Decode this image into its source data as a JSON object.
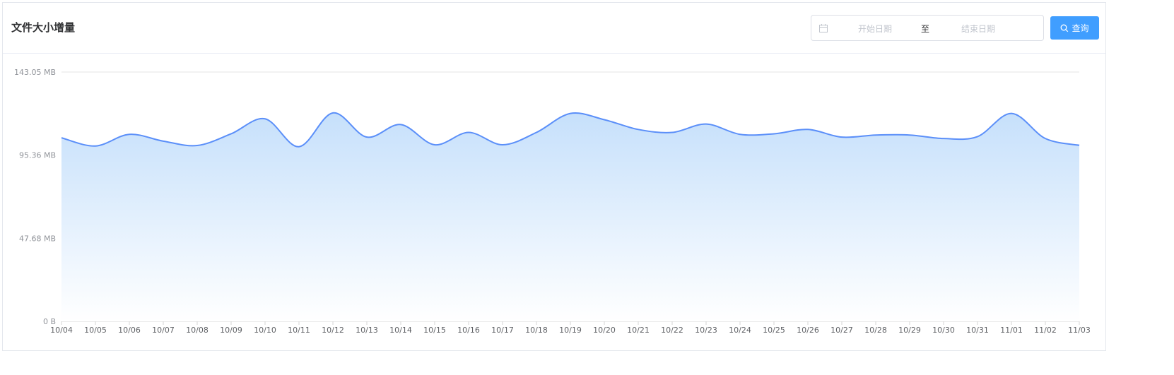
{
  "header": {
    "title": "文件大小增量",
    "start_placeholder": "开始日期",
    "separator": "至",
    "end_placeholder": "结束日期",
    "search_label": "查询"
  },
  "colors": {
    "accent": "#409eff",
    "line": "#5b8ff9",
    "area_top": "#c6e0fb",
    "area_bottom": "#ffffff"
  },
  "chart_data": {
    "type": "area",
    "title": "",
    "xlabel": "",
    "ylabel": "",
    "ylim": [
      0,
      143.05
    ],
    "y_ticks": [
      {
        "value": 0,
        "label": "0 B"
      },
      {
        "value": 47.68,
        "label": "47.68 MB"
      },
      {
        "value": 95.36,
        "label": "95.36 MB"
      },
      {
        "value": 143.05,
        "label": "143.05 MB"
      }
    ],
    "categories": [
      "10/04",
      "10/05",
      "10/06",
      "10/07",
      "10/08",
      "10/09",
      "10/10",
      "10/11",
      "10/12",
      "10/13",
      "10/14",
      "10/15",
      "10/16",
      "10/17",
      "10/18",
      "10/19",
      "10/20",
      "10/21",
      "10/22",
      "10/23",
      "10/24",
      "10/25",
      "10/26",
      "10/27",
      "10/28",
      "10/29",
      "10/30",
      "10/31",
      "11/01",
      "11/02",
      "11/03"
    ],
    "series": [
      {
        "values": [
          105.3,
          100.6,
          107.3,
          103.4,
          100.9,
          107.6,
          116.2,
          100.2,
          119.6,
          105.7,
          112.9,
          101.3,
          108.4,
          101.3,
          108.4,
          119.3,
          115.7,
          110.1,
          108.4,
          113.2,
          107.3,
          107.6,
          110.1,
          105.7,
          106.9,
          106.9,
          104.9,
          106.0,
          119.3,
          104.9,
          101.0
        ]
      }
    ],
    "grid": true,
    "legend": "none"
  }
}
